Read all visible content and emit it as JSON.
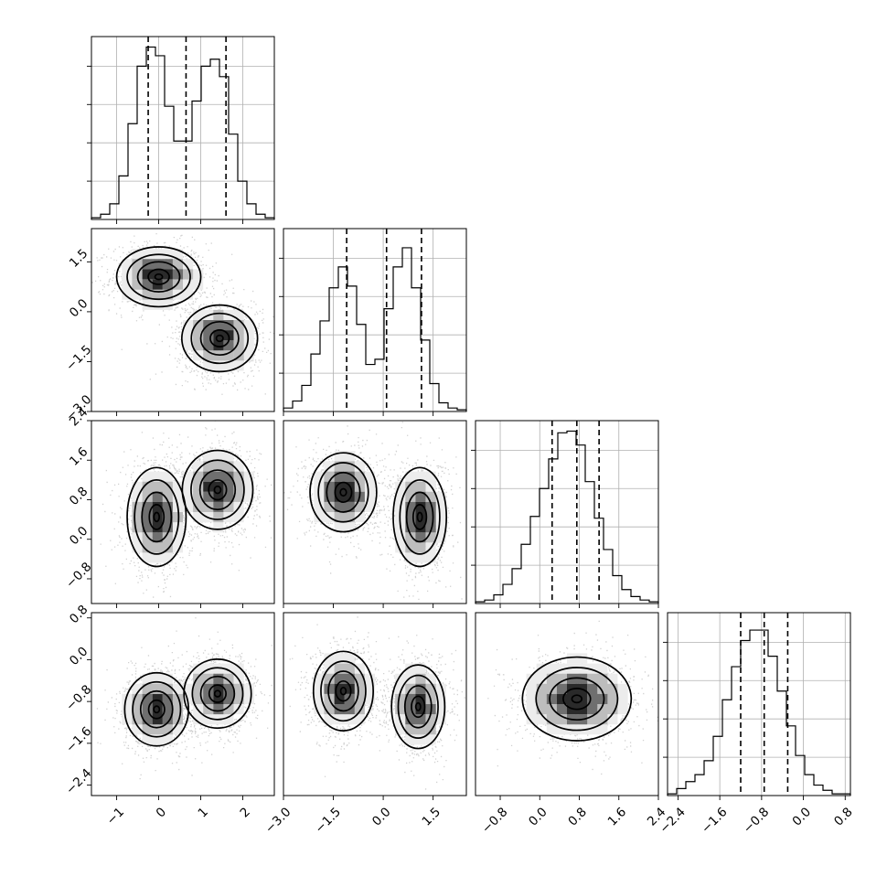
{
  "chart_data": {
    "type": "corner",
    "title": "",
    "parameters": [
      {
        "range": [
          -1.6,
          2.75
        ],
        "ticks": [
          -1,
          0,
          1,
          2
        ],
        "tick_labels": [
          "−1",
          "0",
          "1",
          "2"
        ],
        "quantiles": [
          -0.25,
          0.65,
          1.6
        ]
      },
      {
        "range": [
          -3.0,
          2.5
        ],
        "ticks": [
          -3.0,
          -1.5,
          0.0,
          1.5
        ],
        "tick_labels": [
          "−3.0",
          "−1.5",
          "0.0",
          "1.5"
        ],
        "quantiles": [
          -1.1,
          0.1,
          1.15
        ]
      },
      {
        "range": [
          -1.3,
          2.4
        ],
        "ticks": [
          -0.8,
          0.0,
          0.8,
          1.6,
          2.4
        ],
        "tick_labels": [
          "−0.8",
          "0.0",
          "0.8",
          "1.6",
          "2.4"
        ],
        "quantiles": [
          0.25,
          0.75,
          1.2
        ]
      },
      {
        "range": [
          -2.6,
          0.9
        ],
        "ticks": [
          -2.4,
          -1.6,
          -0.8,
          0.0,
          0.8
        ],
        "tick_labels": [
          "−2.4",
          "−1.6",
          "−0.8",
          "0.0",
          "0.8"
        ],
        "quantiles": [
          -1.2,
          -0.75,
          -0.3
        ]
      }
    ],
    "histograms": [
      {
        "parameter": 0,
        "bins": 20,
        "ymax": 1.0,
        "counts": [
          0.01,
          0.03,
          0.09,
          0.25,
          0.55,
          0.88,
          0.99,
          0.94,
          0.65,
          0.45,
          0.45,
          0.68,
          0.88,
          0.92,
          0.82,
          0.49,
          0.22,
          0.09,
          0.03,
          0.01
        ]
      },
      {
        "parameter": 1,
        "bins": 20,
        "ymax": 1.0,
        "counts": [
          0.02,
          0.06,
          0.15,
          0.33,
          0.52,
          0.71,
          0.83,
          0.72,
          0.5,
          0.27,
          0.3,
          0.59,
          0.83,
          0.94,
          0.71,
          0.41,
          0.16,
          0.05,
          0.02,
          0.01
        ]
      },
      {
        "parameter": 2,
        "bins": 20,
        "ymax": 1.0,
        "counts": [
          0.01,
          0.02,
          0.05,
          0.11,
          0.2,
          0.34,
          0.5,
          0.66,
          0.83,
          0.98,
          0.99,
          0.91,
          0.7,
          0.49,
          0.31,
          0.16,
          0.08,
          0.04,
          0.02,
          0.01
        ]
      },
      {
        "parameter": 3,
        "bins": 20,
        "ymax": 1.0,
        "counts": [
          0.01,
          0.04,
          0.08,
          0.12,
          0.2,
          0.34,
          0.55,
          0.74,
          0.89,
          0.95,
          0.95,
          0.8,
          0.6,
          0.4,
          0.23,
          0.12,
          0.06,
          0.03,
          0.01,
          0.01
        ]
      }
    ],
    "pairs": [
      {
        "x": 0,
        "y": 1,
        "modes": [
          {
            "center": [
              0.0,
              1.05
            ],
            "sigma": [
              0.5,
              0.45
            ]
          },
          {
            "center": [
              1.45,
              -0.8
            ],
            "sigma": [
              0.45,
              0.5
            ]
          }
        ]
      },
      {
        "x": 0,
        "y": 2,
        "modes": [
          {
            "center": [
              -0.05,
              0.45
            ],
            "sigma": [
              0.35,
              0.5
            ]
          },
          {
            "center": [
              1.4,
              1.0
            ],
            "sigma": [
              0.42,
              0.4
            ]
          }
        ]
      },
      {
        "x": 1,
        "y": 2,
        "modes": [
          {
            "center": [
              -1.2,
              0.95
            ],
            "sigma": [
              0.5,
              0.4
            ]
          },
          {
            "center": [
              1.1,
              0.45
            ],
            "sigma": [
              0.4,
              0.5
            ]
          }
        ]
      },
      {
        "x": 0,
        "y": 3,
        "modes": [
          {
            "center": [
              -0.05,
              -0.95
            ],
            "sigma": [
              0.38,
              0.35
            ]
          },
          {
            "center": [
              1.4,
              -0.65
            ],
            "sigma": [
              0.4,
              0.33
            ]
          }
        ]
      },
      {
        "x": 1,
        "y": 3,
        "modes": [
          {
            "center": [
              -1.2,
              -0.6
            ],
            "sigma": [
              0.45,
              0.38
            ]
          },
          {
            "center": [
              1.05,
              -0.9
            ],
            "sigma": [
              0.4,
              0.4
            ]
          }
        ]
      },
      {
        "x": 2,
        "y": 3,
        "modes": [
          {
            "center": [
              0.75,
              -0.75
            ],
            "sigma": [
              0.55,
              0.4
            ]
          }
        ]
      }
    ],
    "colors": {
      "lines": "#000000",
      "grid": "#b0b0b0",
      "density": "#000000",
      "background": "#ffffff"
    },
    "grid": true,
    "legend": "none"
  }
}
